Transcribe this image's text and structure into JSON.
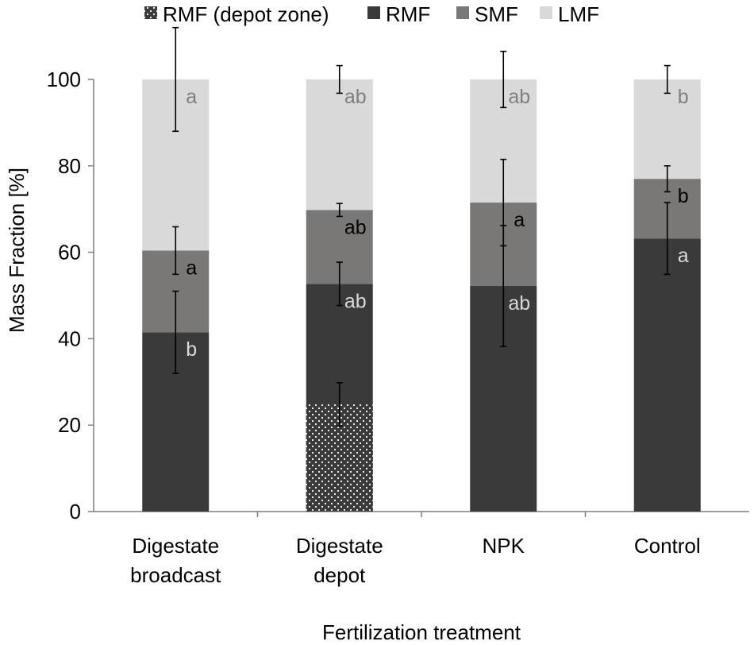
{
  "chart_data": {
    "type": "bar",
    "stacked": true,
    "title": "",
    "xlabel": "Fertilization treatment",
    "ylabel": "Mass Fraction [%]",
    "ylim": [
      0,
      100
    ],
    "yticks": [
      0,
      20,
      40,
      60,
      80,
      100
    ],
    "legend_position": "top",
    "categories": [
      {
        "line1": "Digestate",
        "line2": "broadcast"
      },
      {
        "line1": "Digestate",
        "line2": "depot"
      },
      {
        "line1": "NPK",
        "line2": ""
      },
      {
        "line1": "Control",
        "line2": ""
      }
    ],
    "legend": [
      {
        "label": "RMF (depot zone)",
        "key": "rmf_depot",
        "pattern": "dotted"
      },
      {
        "label": "RMF",
        "key": "rmf"
      },
      {
        "label": "SMF",
        "key": "smf"
      },
      {
        "label": "LMF",
        "key": "lmf"
      }
    ],
    "colors": {
      "rmf": "#3a3a3a",
      "smf": "#7a7777",
      "lmf": "#d9d9d9",
      "rmf_depot_dot": "#ffffff",
      "axis": "#7f7f7f",
      "text": "#000000"
    },
    "series": [
      {
        "key": "rmf",
        "name": "RMF",
        "values": [
          41.5,
          52.7,
          52.2,
          63.2
        ],
        "errors": [
          9.5,
          5.0,
          14.0,
          8.3
        ],
        "letters": [
          "b",
          "ab",
          "ab",
          "a"
        ],
        "letter_color": "#d9d9d9"
      },
      {
        "key": "smf",
        "name": "SMF",
        "values": [
          18.9,
          17.1,
          19.3,
          13.8
        ],
        "errors": [
          5.5,
          1.5,
          10.0,
          3.0
        ],
        "letters": [
          "a",
          "ab",
          "a",
          "b"
        ],
        "letter_color": "#000000"
      },
      {
        "key": "lmf",
        "name": "LMF",
        "values": [
          39.6,
          30.2,
          28.5,
          23.0
        ],
        "errors": [
          12.0,
          3.2,
          6.5,
          3.2
        ],
        "letters": [
          "a",
          "ab",
          "ab",
          "b"
        ],
        "letter_color": "#7f7f7f"
      }
    ],
    "depot_zone": {
      "category_index": 1,
      "value": 24.8,
      "error": 5.0
    }
  }
}
